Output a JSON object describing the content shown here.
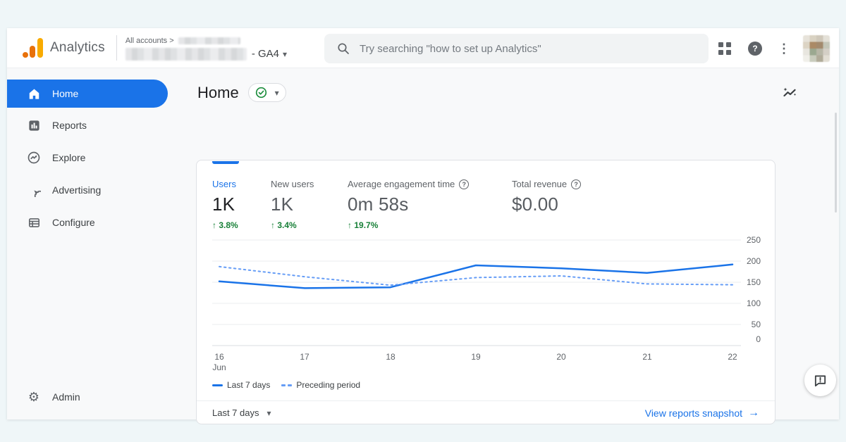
{
  "header": {
    "brand": "Analytics",
    "breadcrumb": "All accounts >",
    "property_suffix": "- GA4",
    "search_placeholder": "Try searching \"how to set up Analytics\""
  },
  "sidebar": {
    "items": [
      {
        "label": "Home",
        "icon": "home-icon",
        "active": true
      },
      {
        "label": "Reports",
        "icon": "reports-icon",
        "active": false
      },
      {
        "label": "Explore",
        "icon": "explore-icon",
        "active": false
      },
      {
        "label": "Advertising",
        "icon": "advertising-icon",
        "active": false
      },
      {
        "label": "Configure",
        "icon": "configure-icon",
        "active": false
      }
    ],
    "admin_label": "Admin"
  },
  "page": {
    "title": "Home"
  },
  "card": {
    "metrics": [
      {
        "label": "Users",
        "value": "1K",
        "delta": "3.8%",
        "selected": true
      },
      {
        "label": "New users",
        "value": "1K",
        "delta": "3.4%",
        "selected": false
      },
      {
        "label": "Average engagement time",
        "value": "0m 58s",
        "delta": "19.7%",
        "selected": false,
        "has_help": true
      },
      {
        "label": "Total revenue",
        "value": "$0.00",
        "selected": false,
        "has_help": true
      }
    ],
    "footer": {
      "range_label": "Last 7 days",
      "link_label": "View reports snapshot"
    }
  },
  "chart_data": {
    "type": "line",
    "x": [
      "16",
      "17",
      "18",
      "19",
      "20",
      "21",
      "22"
    ],
    "x_sublabel": "Jun",
    "series": [
      {
        "name": "Last 7 days",
        "style": "solid",
        "values": [
          152,
          136,
          138,
          190,
          183,
          172,
          192
        ]
      },
      {
        "name": "Preceding period",
        "style": "dashed",
        "values": [
          187,
          163,
          143,
          161,
          165,
          146,
          144
        ]
      }
    ],
    "ylim": [
      0,
      250
    ],
    "yticks": [
      250,
      200,
      150,
      100,
      50,
      0
    ],
    "grid": true,
    "legend_position": "bottom"
  },
  "colors": {
    "accent": "#1a73e8",
    "positive": "#188038",
    "line_solid": "#1a73e8",
    "line_dashed": "#669df6",
    "gridline": "#ebedef",
    "axis": "#dadce0"
  },
  "icons": {
    "up_arrow": "↑",
    "caret_down": "▾",
    "link_arrow": "→",
    "help_glyph": "?",
    "gear_glyph": "⚙",
    "kebab_glyph": "⋮"
  }
}
